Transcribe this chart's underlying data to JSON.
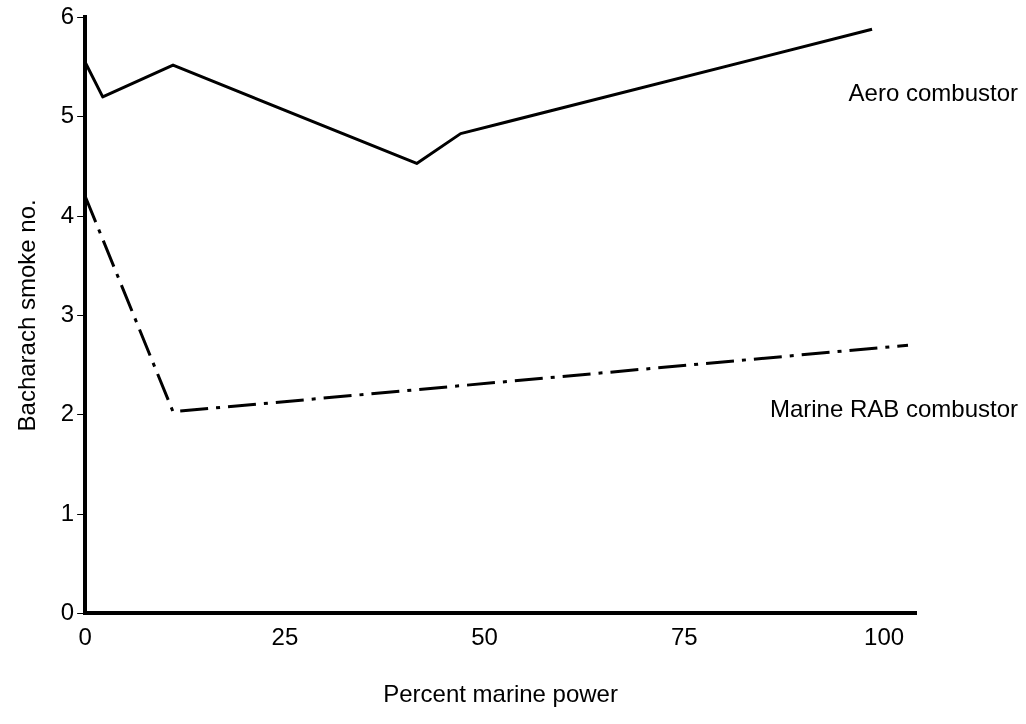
{
  "chart_data": {
    "type": "line",
    "xlabel": "Percent marine power",
    "ylabel": "Bacharach smoke no.",
    "xlim": [
      0,
      104
    ],
    "xticks": [
      0,
      25,
      50,
      75,
      100
    ],
    "ylim": [
      0,
      6
    ],
    "yticks": [
      0,
      1,
      2,
      3,
      4,
      5,
      6
    ],
    "grid": false,
    "legend": false,
    "marker": "none",
    "series": [
      {
        "name": "Aero combustor",
        "color": "#000000",
        "line_style": "solid",
        "x": [
          0,
          2.2,
          11,
          41.5,
          47,
          98.5
        ],
        "values": [
          5.55,
          5.2,
          5.52,
          4.53,
          4.83,
          5.88
        ]
      },
      {
        "name": "Marine RAB combustor",
        "color": "#000000",
        "line_style": "dashed",
        "x": [
          0,
          11,
          103
        ],
        "values": [
          4.2,
          2.03,
          2.7
        ]
      }
    ]
  }
}
